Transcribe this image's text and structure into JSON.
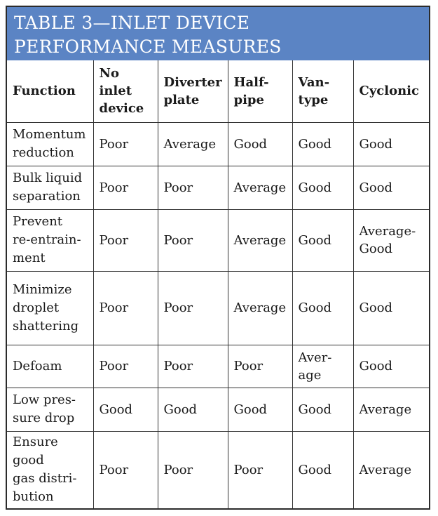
{
  "title": {
    "line1": "TABLE 3—INLET DEVICE",
    "line2": "PERFORMANCE MEASURES"
  },
  "table": {
    "headers": [
      [
        "Function"
      ],
      [
        "No",
        "inlet",
        "device"
      ],
      [
        "Diverter",
        "plate"
      ],
      [
        "Half-",
        "pipe"
      ],
      [
        "Van-",
        "type"
      ],
      [
        "Cyclonic"
      ]
    ],
    "rows": [
      {
        "function": [
          "Momentum",
          "reduction"
        ],
        "values": [
          [
            "Poor"
          ],
          [
            "Average"
          ],
          [
            "Good"
          ],
          [
            "Good"
          ],
          [
            "Good"
          ]
        ]
      },
      {
        "function": [
          "Bulk liquid",
          "separation"
        ],
        "values": [
          [
            "Poor"
          ],
          [
            "Poor"
          ],
          [
            "Average"
          ],
          [
            "Good"
          ],
          [
            "Good"
          ]
        ]
      },
      {
        "function": [
          "Prevent",
          "re-entrain-",
          "ment"
        ],
        "values": [
          [
            "Poor"
          ],
          [
            "Poor"
          ],
          [
            "Average"
          ],
          [
            "Good"
          ],
          [
            "Average-",
            "Good"
          ]
        ]
      },
      {
        "function": [
          "Minimize",
          "droplet",
          "shattering"
        ],
        "values": [
          [
            "Poor"
          ],
          [
            "Poor"
          ],
          [
            "Average"
          ],
          [
            "Good"
          ],
          [
            "Good"
          ]
        ]
      },
      {
        "function": [
          "Defoam"
        ],
        "values": [
          [
            "Poor"
          ],
          [
            "Poor"
          ],
          [
            "Poor"
          ],
          [
            "Aver-",
            "age"
          ],
          [
            "Good"
          ]
        ]
      },
      {
        "function": [
          "Low pres-",
          "sure drop"
        ],
        "values": [
          [
            "Good"
          ],
          [
            "Good"
          ],
          [
            "Good"
          ],
          [
            "Good"
          ],
          [
            "Average"
          ]
        ]
      },
      {
        "function": [
          "Ensure",
          "good",
          "gas distri-",
          "bution"
        ],
        "values": [
          [
            "Poor"
          ],
          [
            "Poor"
          ],
          [
            "Poor"
          ],
          [
            "Good"
          ],
          [
            "Average"
          ]
        ]
      }
    ]
  }
}
